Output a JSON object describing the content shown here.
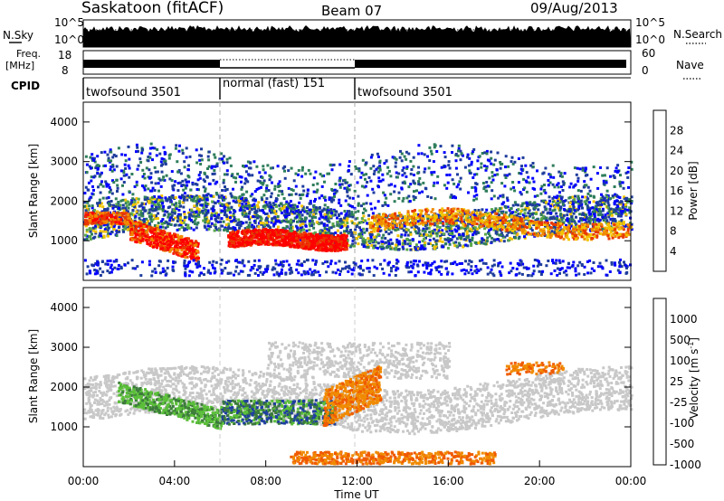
{
  "header": {
    "station": "Saskatoon (fitACF)",
    "beam": "Beam 07",
    "date": "09/Aug/2013"
  },
  "strip_labels": {
    "nsky": "N.Sky",
    "freq": "Freq.",
    "freq_unit": "[MHz]",
    "cpid": "CPID",
    "nsearch": "N.Search",
    "nave": "Nave",
    "nsky_ticks": [
      "10^5",
      "10^0"
    ],
    "nsearch_ticks": [
      "10^5",
      "10^0"
    ],
    "freq_ticks": [
      "18",
      "8"
    ],
    "nave_ticks": [
      "60",
      "0"
    ]
  },
  "cpid_segments": [
    {
      "label": "twofsound 3501",
      "start": 0,
      "end": 6
    },
    {
      "label": "normal (fast) 151",
      "start": 6,
      "end": 12
    },
    {
      "label": "twofsound 3501",
      "start": 12,
      "end": 24
    }
  ],
  "chart_data": [
    {
      "type": "heatmap",
      "title": "Power",
      "ylabel": "Slant Range [km]",
      "xlabel": "",
      "colorbar_label": "Power [dB]",
      "colorbar_ticks": [
        "28",
        "24",
        "20",
        "16",
        "12",
        "8",
        "4"
      ],
      "colors": [
        "#0000ff",
        "#1e3c9c",
        "#2e7d5a",
        "#5aa84a",
        "#f2c400",
        "#f08a00",
        "#e83a00",
        "#ff0000"
      ],
      "ylim": [
        0,
        4500
      ],
      "yticks": [
        "4000",
        "3000",
        "2000",
        "1000"
      ],
      "xlim": [
        0,
        24
      ]
    },
    {
      "type": "heatmap",
      "title": "Velocity",
      "ylabel": "Slant Range [km]",
      "xlabel": "Time UT",
      "colorbar_label": "Velocity [m s",
      "colorbar_label_sup": "-1",
      "colorbar_label_end": "]",
      "colorbar_ticks": [
        "1000",
        "500",
        "100",
        "25",
        "-25",
        "-100",
        "-500",
        "-1000"
      ],
      "colors": [
        "#1f3fa0",
        "#3c7a3c",
        "#5bbf3a",
        "#c8c8c8",
        "#c8c8c8",
        "#f08a00",
        "#f05a00",
        "#ff1010"
      ],
      "ylim": [
        0,
        4500
      ],
      "yticks": [
        "4000",
        "3000",
        "2000",
        "1000"
      ],
      "xlim": [
        0,
        24
      ],
      "xticks": [
        "00:00",
        "04:00",
        "08:00",
        "12:00",
        "16:00",
        "20:00",
        "00:00"
      ]
    }
  ]
}
